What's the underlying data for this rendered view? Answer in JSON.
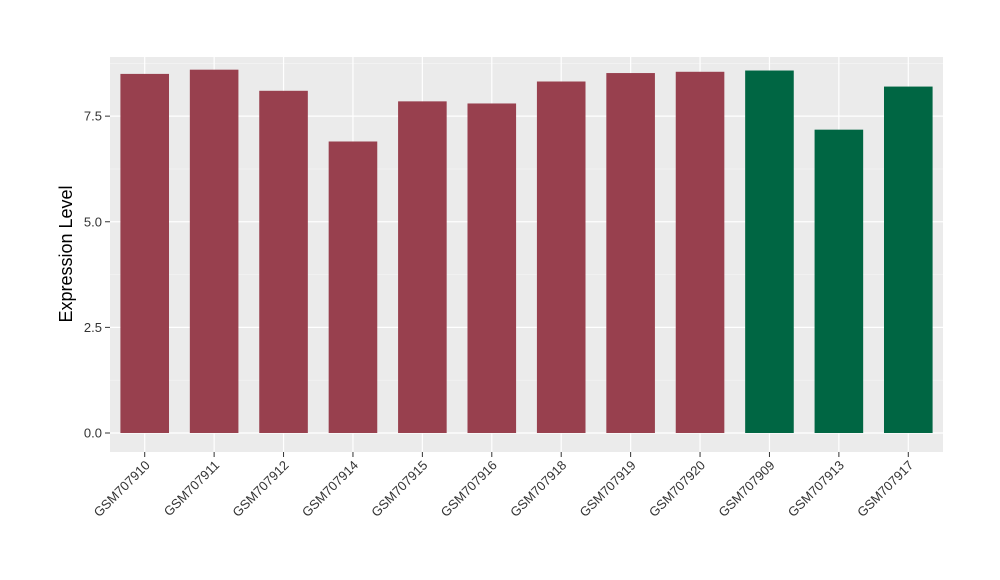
{
  "chart_data": {
    "type": "bar",
    "title": "",
    "xlabel": "",
    "ylabel": "Expression Level",
    "ylim": [
      -0.45,
      8.9
    ],
    "yticks": [
      0.0,
      2.5,
      5.0,
      7.5
    ],
    "ytick_labels": [
      "0.0",
      "2.5",
      "5.0",
      "7.5"
    ],
    "grid": true,
    "background": "#EBEBEB",
    "categories": [
      "GSM707910",
      "GSM707911",
      "GSM707912",
      "GSM707914",
      "GSM707915",
      "GSM707916",
      "GSM707918",
      "GSM707919",
      "GSM707920",
      "GSM707909",
      "GSM707913",
      "GSM707917"
    ],
    "values": [
      8.5,
      8.6,
      8.1,
      6.9,
      7.85,
      7.8,
      8.32,
      8.52,
      8.55,
      8.58,
      7.18,
      8.2
    ],
    "bar_colors": [
      "#98404E",
      "#98404E",
      "#98404E",
      "#98404E",
      "#98404E",
      "#98404E",
      "#98404E",
      "#98404E",
      "#98404E",
      "#006643",
      "#006643",
      "#006643"
    ]
  }
}
